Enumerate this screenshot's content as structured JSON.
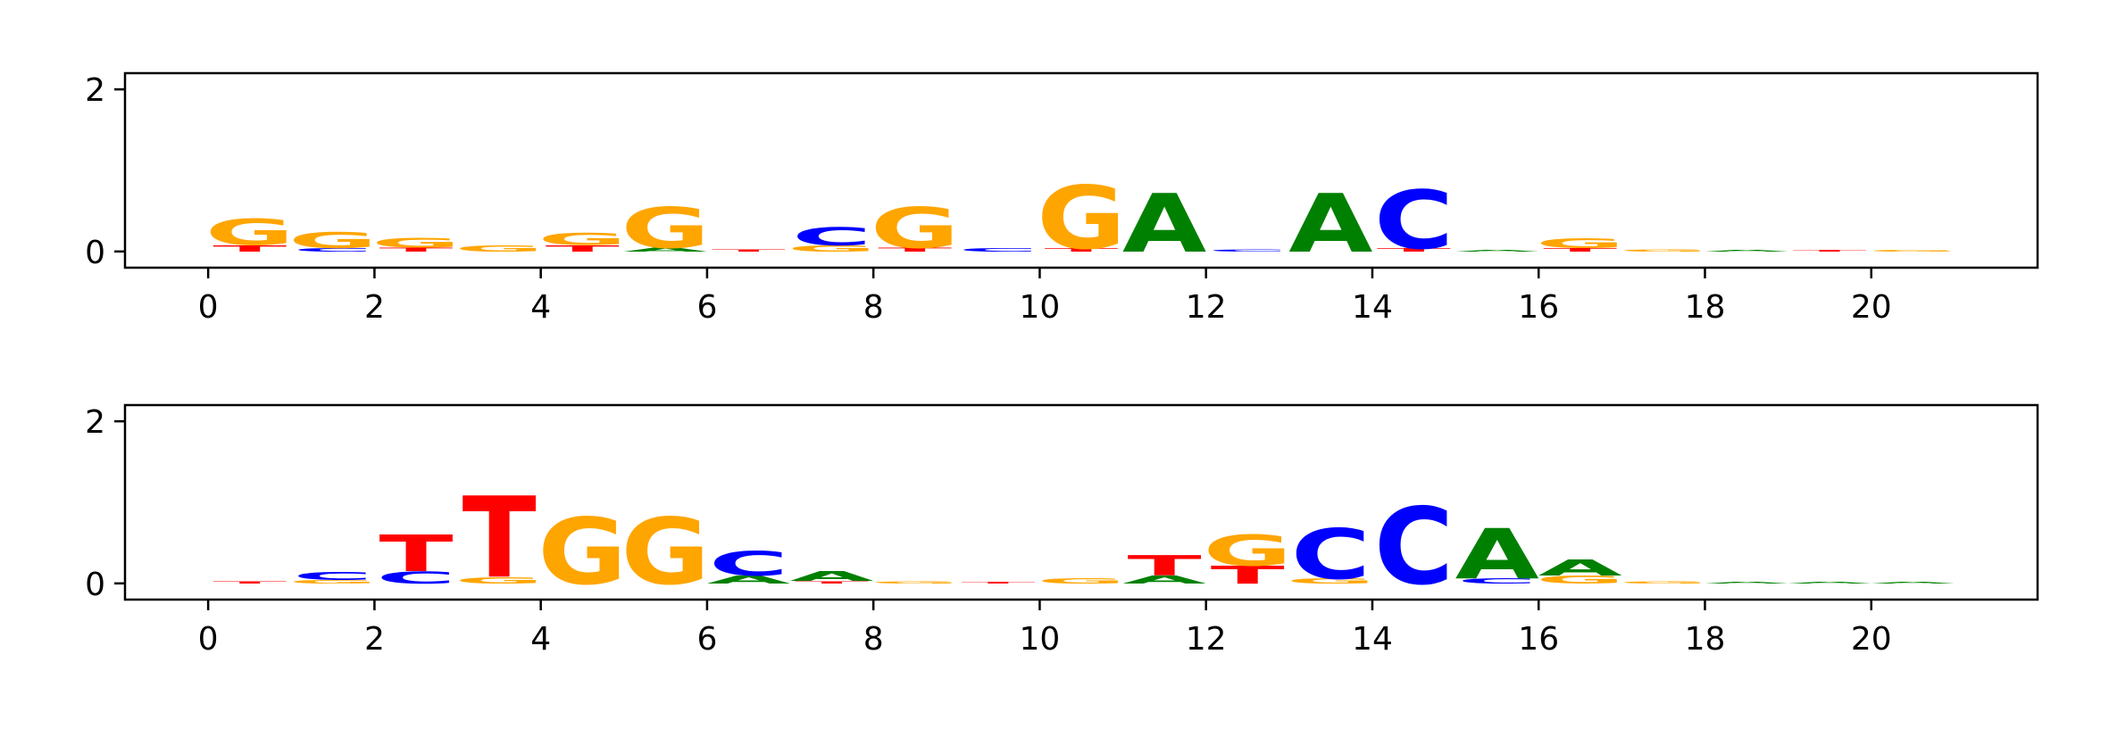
{
  "colors": {
    "A": "#008000",
    "C": "#0000ff",
    "G": "#ffa500",
    "T": "#ff0000",
    "axis": "#000000"
  },
  "chart_data": [
    {
      "type": "sequence-logo",
      "title": "",
      "xlabel": "",
      "ylabel": "",
      "xlim": [
        -1,
        22
      ],
      "ylim": [
        -0.2,
        2.2
      ],
      "xticks": [
        0,
        2,
        4,
        6,
        8,
        10,
        12,
        14,
        16,
        18,
        20
      ],
      "yticks": [
        0,
        2
      ],
      "positions": [
        {
          "x": 0,
          "letters": [
            [
              "G",
              0.32
            ],
            [
              "T",
              0.08
            ]
          ]
        },
        {
          "x": 1,
          "letters": [
            [
              "G",
              0.2
            ],
            [
              "C",
              0.04
            ]
          ]
        },
        {
          "x": 2,
          "letters": [
            [
              "G",
              0.12
            ],
            [
              "T",
              0.05
            ]
          ]
        },
        {
          "x": 3,
          "letters": [
            [
              "G",
              0.08
            ]
          ]
        },
        {
          "x": 4,
          "letters": [
            [
              "G",
              0.15
            ],
            [
              "T",
              0.08
            ]
          ]
        },
        {
          "x": 5,
          "letters": [
            [
              "G",
              0.5
            ],
            [
              "A",
              0.05
            ]
          ]
        },
        {
          "x": 6,
          "letters": [
            [
              "T",
              0.03
            ]
          ]
        },
        {
          "x": 7,
          "letters": [
            [
              "C",
              0.22
            ],
            [
              "G",
              0.08
            ]
          ]
        },
        {
          "x": 8,
          "letters": [
            [
              "G",
              0.5
            ],
            [
              "T",
              0.05
            ]
          ]
        },
        {
          "x": 9,
          "letters": [
            [
              "C",
              0.04
            ]
          ]
        },
        {
          "x": 10,
          "letters": [
            [
              "G",
              0.78
            ],
            [
              "T",
              0.04
            ]
          ]
        },
        {
          "x": 11,
          "letters": [
            [
              "A",
              0.72
            ]
          ]
        },
        {
          "x": 12,
          "letters": [
            [
              "C",
              0.03
            ]
          ]
        },
        {
          "x": 13,
          "letters": [
            [
              "A",
              0.72
            ]
          ]
        },
        {
          "x": 14,
          "letters": [
            [
              "C",
              0.72
            ],
            [
              "T",
              0.04
            ]
          ]
        },
        {
          "x": 15,
          "letters": [
            [
              "A",
              0.02
            ]
          ]
        },
        {
          "x": 16,
          "letters": [
            [
              "G",
              0.12
            ],
            [
              "T",
              0.04
            ]
          ]
        },
        {
          "x": 17,
          "letters": [
            [
              "G",
              0.03
            ]
          ]
        },
        {
          "x": 18,
          "letters": [
            [
              "A",
              0.02
            ]
          ]
        },
        {
          "x": 19,
          "letters": [
            [
              "T",
              0.02
            ]
          ]
        },
        {
          "x": 20,
          "letters": [
            [
              "G",
              0.02
            ]
          ]
        }
      ]
    },
    {
      "type": "sequence-logo",
      "title": "",
      "xlabel": "",
      "ylabel": "",
      "xlim": [
        -1,
        22
      ],
      "ylim": [
        -0.2,
        2.2
      ],
      "xticks": [
        0,
        2,
        4,
        6,
        8,
        10,
        12,
        14,
        16,
        18,
        20
      ],
      "yticks": [
        0,
        2
      ],
      "positions": [
        {
          "x": 0,
          "letters": [
            [
              "T",
              0.03
            ]
          ]
        },
        {
          "x": 1,
          "letters": [
            [
              "C",
              0.1
            ],
            [
              "G",
              0.04
            ]
          ]
        },
        {
          "x": 2,
          "letters": [
            [
              "T",
              0.45
            ],
            [
              "C",
              0.15
            ]
          ]
        },
        {
          "x": 3,
          "letters": [
            [
              "T",
              1.0
            ],
            [
              "G",
              0.08
            ]
          ]
        },
        {
          "x": 4,
          "letters": [
            [
              "G",
              0.82
            ]
          ]
        },
        {
          "x": 5,
          "letters": [
            [
              "G",
              0.82
            ]
          ]
        },
        {
          "x": 6,
          "letters": [
            [
              "C",
              0.3
            ],
            [
              "A",
              0.1
            ]
          ]
        },
        {
          "x": 7,
          "letters": [
            [
              "A",
              0.12
            ],
            [
              "T",
              0.03
            ]
          ]
        },
        {
          "x": 8,
          "letters": [
            [
              "G",
              0.03
            ]
          ]
        },
        {
          "x": 9,
          "letters": [
            [
              "T",
              0.02
            ]
          ]
        },
        {
          "x": 10,
          "letters": [
            [
              "G",
              0.06
            ]
          ]
        },
        {
          "x": 11,
          "letters": [
            [
              "T",
              0.25
            ],
            [
              "A",
              0.1
            ]
          ]
        },
        {
          "x": 12,
          "letters": [
            [
              "G",
              0.38
            ],
            [
              "T",
              0.22
            ]
          ]
        },
        {
          "x": 13,
          "letters": [
            [
              "C",
              0.62
            ],
            [
              "G",
              0.06
            ]
          ]
        },
        {
          "x": 14,
          "letters": [
            [
              "C",
              0.95
            ]
          ]
        },
        {
          "x": 15,
          "letters": [
            [
              "A",
              0.62
            ],
            [
              "C",
              0.06
            ]
          ]
        },
        {
          "x": 16,
          "letters": [
            [
              "A",
              0.2
            ],
            [
              "G",
              0.1
            ]
          ]
        },
        {
          "x": 17,
          "letters": [
            [
              "G",
              0.03
            ]
          ]
        },
        {
          "x": 18,
          "letters": [
            [
              "A",
              0.02
            ]
          ]
        },
        {
          "x": 19,
          "letters": [
            [
              "A",
              0.02
            ]
          ]
        },
        {
          "x": 20,
          "letters": [
            [
              "A",
              0.02
            ]
          ]
        }
      ]
    }
  ]
}
